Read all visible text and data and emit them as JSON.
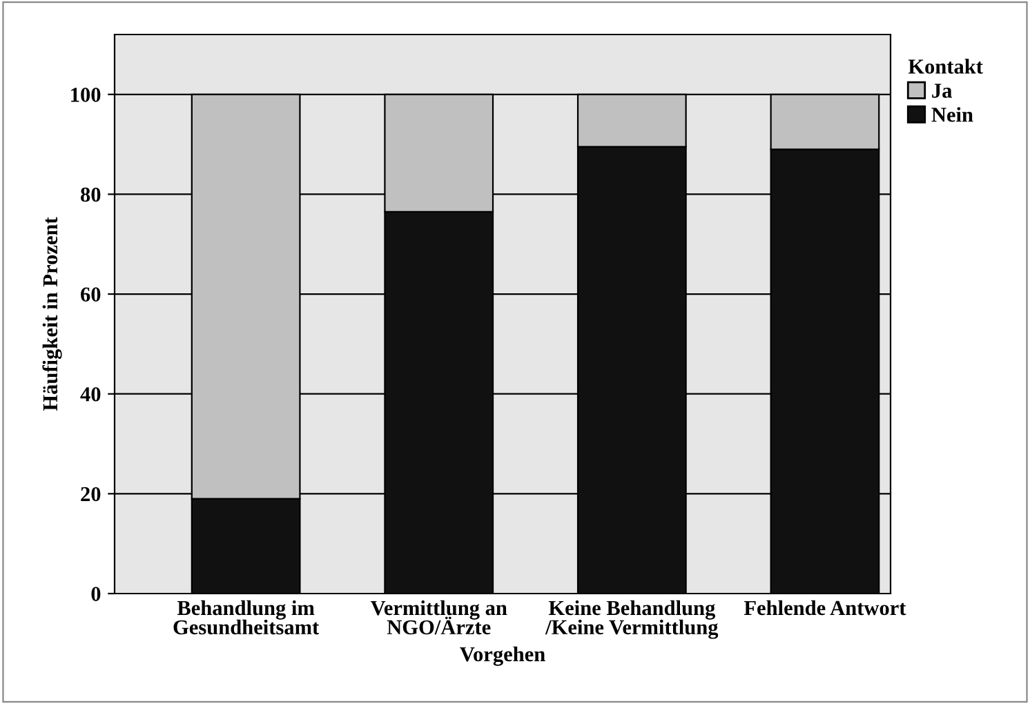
{
  "chart_data": {
    "type": "bar",
    "stacked": true,
    "xlabel": "Vorgehen",
    "ylabel": "Häufigkeit in Prozent",
    "legend_title": "Kontakt",
    "categories": [
      "Behandlung im\nGesundheitsamt",
      "Vermittlung an\nNGO/Ärzte",
      "Keine Behandlung\n/Keine Vermittlung",
      "Fehlende Antwort"
    ],
    "series": [
      {
        "name": "Nein",
        "color": "#111111",
        "values": [
          19,
          76.5,
          89.5,
          89
        ]
      },
      {
        "name": "Ja",
        "color": "#c0c0c0",
        "values": [
          81,
          23.5,
          10.5,
          11
        ]
      }
    ],
    "ylim": [
      0,
      112
    ],
    "yticks": [
      0,
      20,
      40,
      60,
      80,
      100
    ],
    "grid": "y",
    "legend": "top right"
  }
}
